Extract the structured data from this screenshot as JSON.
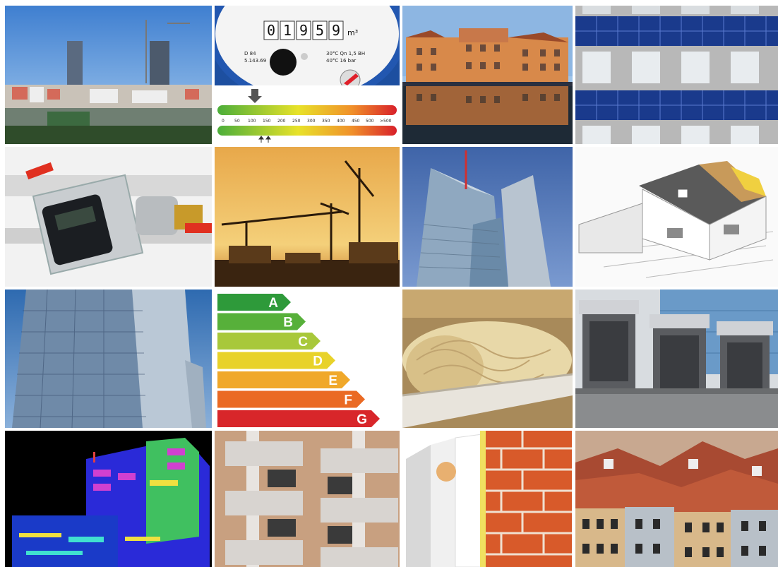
{
  "meter": {
    "digits": [
      "0",
      "1",
      "9",
      "5",
      "9"
    ],
    "unit": "m³",
    "left_line1": "D 84",
    "left_line2": "5.143.69",
    "right_line1": "30°C Qn 1,5 BH",
    "right_line2": "40°C 16 bar"
  },
  "scale": {
    "ticks": [
      "0",
      "50",
      "100",
      "150",
      "200",
      "250",
      "300",
      "350",
      "400",
      "450",
      "500",
      ">500"
    ]
  },
  "energy_label": {
    "classes": [
      {
        "letter": "A",
        "color": "#2e9a3a"
      },
      {
        "letter": "B",
        "color": "#57b03a"
      },
      {
        "letter": "C",
        "color": "#a8c83a"
      },
      {
        "letter": "D",
        "color": "#e8d22a"
      },
      {
        "letter": "E",
        "color": "#f0a82a"
      },
      {
        "letter": "F",
        "color": "#ea6a24"
      },
      {
        "letter": "G",
        "color": "#d8262a"
      }
    ]
  }
}
